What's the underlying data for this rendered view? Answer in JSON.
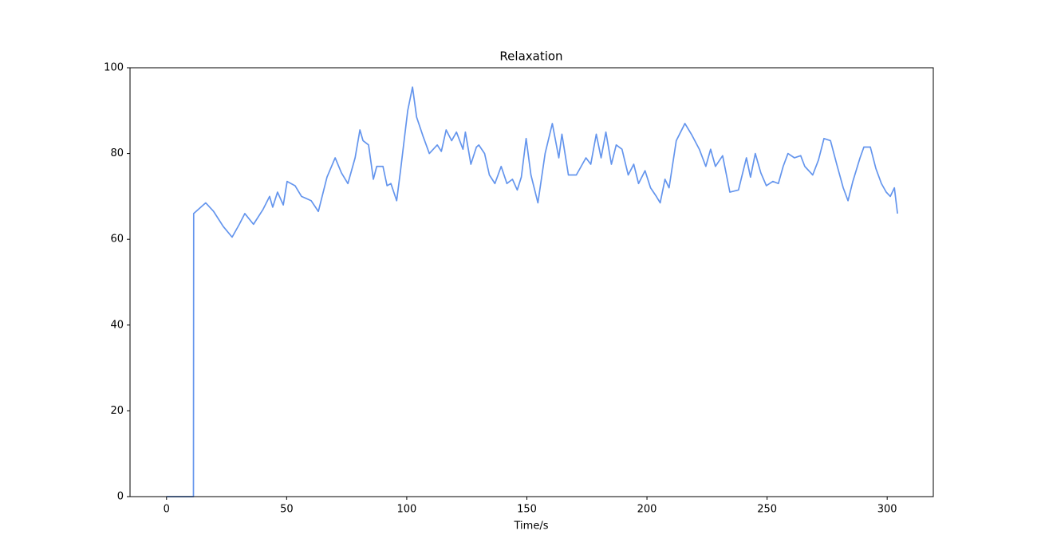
{
  "chart_data": {
    "type": "line",
    "title": "Relaxation",
    "x_label": "Time/s",
    "xlim": [
      -15.2,
      319.2
    ],
    "xticks": [
      0,
      50,
      100,
      150,
      200,
      250,
      300
    ],
    "ylim": [
      0,
      100
    ],
    "yticks": [
      0,
      20,
      40,
      60,
      80,
      100
    ],
    "grid": false,
    "series": [
      {
        "name": "Relaxation",
        "color": "#6495ed",
        "x": [
          0,
          11.2,
          11.3,
          16.3,
          19.6,
          23.6,
          27.3,
          30.3,
          32.6,
          36.2,
          40.2,
          42.9,
          44.2,
          46.2,
          48.6,
          50.2,
          53.5,
          56.2,
          60.2,
          63.2,
          66.8,
          70.2,
          72.8,
          75.5,
          78.5,
          80.5,
          81.8,
          84.1,
          86.1,
          87.5,
          90.1,
          91.8,
          93.4,
          95.8,
          97.4,
          100.4,
          102.4,
          104.1,
          106.8,
          109.4,
          112.7,
          114.4,
          116.4,
          118.7,
          120.7,
          123.4,
          124.4,
          126.7,
          129.0,
          130.0,
          132.4,
          134.4,
          136.7,
          139.3,
          141.7,
          144.0,
          146.0,
          147.7,
          149.7,
          151.7,
          154.6,
          157.6,
          160.6,
          163.3,
          164.6,
          167.3,
          170.6,
          174.6,
          176.6,
          178.9,
          180.9,
          182.9,
          185.2,
          187.2,
          189.6,
          192.2,
          194.5,
          196.5,
          199.2,
          201.5,
          203.9,
          205.5,
          207.5,
          209.2,
          212.2,
          215.8,
          218.5,
          221.8,
          224.5,
          226.5,
          228.5,
          231.5,
          234.5,
          238.1,
          241.4,
          243.1,
          245.1,
          247.4,
          249.7,
          252.4,
          254.7,
          256.7,
          258.7,
          261.4,
          264.0,
          265.7,
          269.0,
          271.4,
          273.7,
          276.4,
          279.0,
          281.7,
          283.7,
          285.7,
          288.7,
          290.3,
          293.0,
          295.3,
          297.6,
          299.6,
          301.3,
          303.0,
          304.3
        ],
        "values": [
          0,
          0,
          66,
          68.5,
          66.5,
          63,
          60.5,
          63.5,
          66,
          63.5,
          67,
          70,
          67.5,
          71,
          68,
          73.5,
          72.5,
          70,
          69,
          66.5,
          74.5,
          79,
          75.5,
          73,
          79,
          85.5,
          83,
          82,
          74,
          77,
          77,
          72.5,
          73,
          69,
          76,
          90,
          95.5,
          88.5,
          84,
          80,
          82,
          80.5,
          85.5,
          83,
          85,
          81,
          85,
          77.5,
          81.5,
          82,
          80,
          75,
          73,
          77,
          73,
          74,
          71.5,
          74.5,
          83.5,
          75,
          68.5,
          80,
          87,
          79,
          84.5,
          75,
          75,
          79,
          77.5,
          84.5,
          79,
          85,
          77.5,
          82,
          81,
          75,
          77.5,
          73,
          76,
          72,
          70,
          68.5,
          74,
          72,
          83,
          87,
          84.5,
          81,
          77,
          81,
          77,
          79.5,
          71,
          71.5,
          79,
          74.5,
          80,
          75.5,
          72.5,
          73.5,
          73,
          77,
          80,
          79,
          79.5,
          77,
          75,
          78.5,
          83.5,
          83,
          77.5,
          72,
          69,
          73.5,
          79,
          81.5,
          81.5,
          76.5,
          73,
          71,
          70,
          72,
          66
        ]
      }
    ]
  }
}
